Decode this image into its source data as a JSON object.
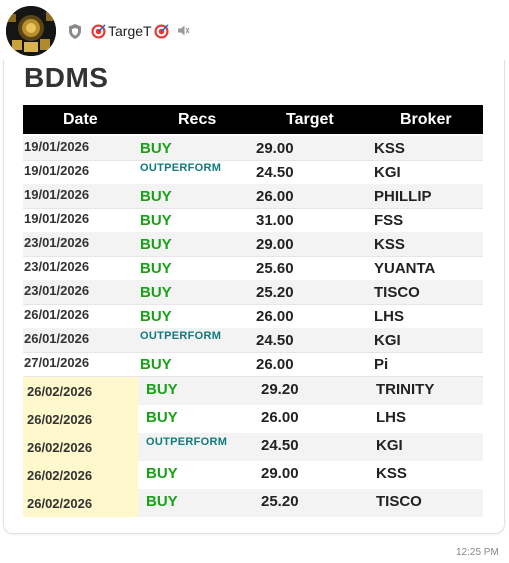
{
  "header": {
    "sender_name": "TargeT",
    "avatar_icon": "gold-dartboard-avatar",
    "shield_icon": "shield-icon",
    "target_icon": "target-emoji-icon",
    "mute_icon": "speaker-muted-icon"
  },
  "message": {
    "title": "BDMS",
    "time": "12:25 PM",
    "columns": [
      "Date",
      "Recs",
      "Target",
      "Broker"
    ],
    "rows": [
      {
        "date": "19/01/2026",
        "rec": "BUY",
        "target": "29.00",
        "broker": "KSS"
      },
      {
        "date": "19/01/2026",
        "rec": "OUTPERFORM",
        "target": "24.50",
        "broker": "KGI"
      },
      {
        "date": "19/01/2026",
        "rec": "BUY",
        "target": "26.00",
        "broker": "PHILLIP"
      },
      {
        "date": "19/01/2026",
        "rec": "BUY",
        "target": "31.00",
        "broker": "FSS"
      },
      {
        "date": "23/01/2026",
        "rec": "BUY",
        "target": "29.00",
        "broker": "KSS"
      },
      {
        "date": "23/01/2026",
        "rec": "BUY",
        "target": "25.60",
        "broker": "YUANTA"
      },
      {
        "date": "23/01/2026",
        "rec": "BUY",
        "target": "25.20",
        "broker": "TISCO"
      },
      {
        "date": "26/01/2026",
        "rec": "BUY",
        "target": "26.00",
        "broker": "LHS"
      },
      {
        "date": "26/01/2026",
        "rec": "OUTPERFORM",
        "target": "24.50",
        "broker": "KGI"
      },
      {
        "date": "27/01/2026",
        "rec": "BUY",
        "target": "26.00",
        "broker": "Pi"
      },
      {
        "date": "26/02/2026",
        "rec": "BUY",
        "target": "29.20",
        "broker": "TRINITY"
      },
      {
        "date": "26/02/2026",
        "rec": "BUY",
        "target": "26.00",
        "broker": "LHS"
      },
      {
        "date": "26/02/2026",
        "rec": "OUTPERFORM",
        "target": "24.50",
        "broker": "KGI"
      },
      {
        "date": "26/02/2026",
        "rec": "BUY",
        "target": "29.00",
        "broker": "KSS"
      },
      {
        "date": "26/02/2026",
        "rec": "BUY",
        "target": "25.20",
        "broker": "TISCO"
      }
    ]
  },
  "colors": {
    "buy": "#1aa01a",
    "outperform": "#117a7a",
    "header_bg": "#000000",
    "highlight_date": "#fff8cc"
  }
}
